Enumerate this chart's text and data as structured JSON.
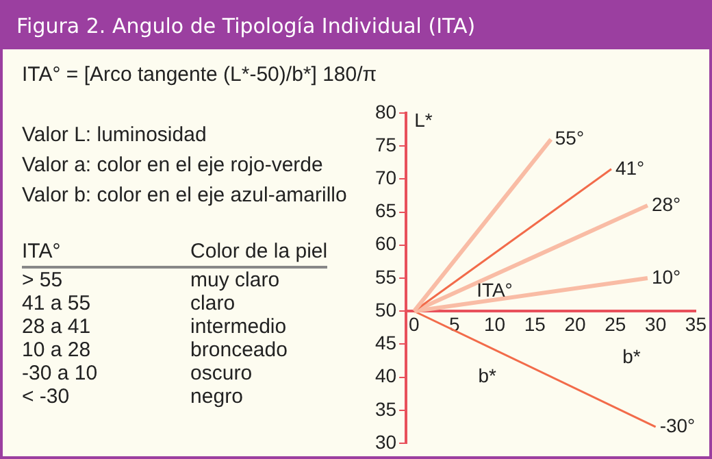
{
  "chart_data": {
    "type": "line",
    "title": "Figura 2. Angulo de Tipología Individual (ITA)",
    "ylabel": "L*",
    "xlabel": "b*",
    "annotations": [
      "ITA° = [Arco tangente (L*-50)/b*] 180/π",
      "Valor L: luminosidad",
      "Valor a: color en el eje rojo-verde",
      "Valor b: color en el eje azul-amarillo",
      "ITA°",
      "Color de la piel",
      "> 55",
      "muy claro",
      "41 a 55",
      "claro",
      "28 a 41",
      "intermedio",
      "10 a 28",
      "bronceado",
      "-30 a 10",
      "oscuro",
      "< -30",
      "negro",
      {
        "text": "55°",
        "x": 17,
        "y": 76
      },
      {
        "text": "41°",
        "x": 24.5,
        "y": 71.5
      },
      {
        "text": "28°",
        "x": 29,
        "y": 66
      },
      {
        "text": "10°",
        "x": 29,
        "y": 55
      },
      {
        "text": "-30°",
        "x": 30,
        "y": 32.5
      },
      {
        "text": "ITA°",
        "x": 10,
        "y": 53
      },
      "b*"
    ],
    "series": [
      {
        "color": "#f9bca5",
        "x": [
          0,
          17
        ],
        "values": [
          50,
          76
        ]
      },
      {
        "color": "#f26b4a",
        "x": [
          0,
          24.5
        ],
        "values": [
          50,
          71.5
        ]
      },
      {
        "color": "#f9bca5",
        "x": [
          0,
          29
        ],
        "values": [
          50,
          66
        ]
      },
      {
        "color": "#f9bca5",
        "x": [
          0,
          29
        ],
        "values": [
          50,
          55
        ]
      },
      {
        "color": "#f26b4a",
        "x": [
          0,
          30
        ],
        "values": [
          50,
          32.5
        ]
      }
    ],
    "xlim": [
      -1,
      35
    ],
    "xticks": [
      0,
      5,
      10,
      15,
      20,
      25,
      30,
      35
    ],
    "ylim": [
      30,
      80
    ],
    "yticks": [
      30,
      35,
      40,
      45,
      50,
      55,
      60,
      65,
      70,
      75,
      80
    ],
    "grid": false,
    "legend": false,
    "marker": "none",
    "line_style": "solid"
  }
}
